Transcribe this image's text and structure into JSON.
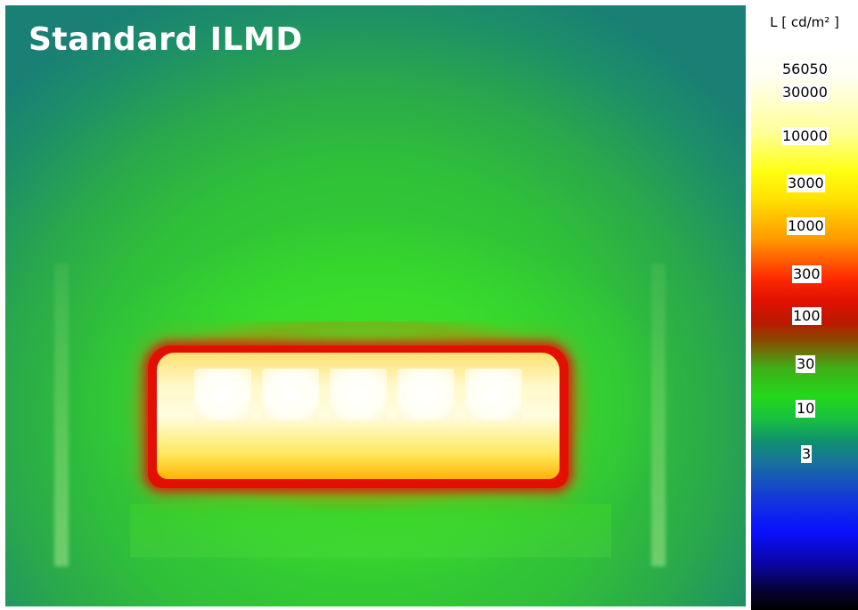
{
  "title": "Standard ILMD",
  "colorbar": {
    "unit": "L [ cd/m² ]",
    "ticks": [
      "56050",
      "30000",
      "10000",
      "3000",
      "1000",
      "300",
      "100",
      "30",
      "10",
      "3"
    ]
  },
  "colors": {
    "background_green": "#2fbf3a",
    "lamp_core": "#fffde0",
    "lamp_edge": "#e30f05"
  }
}
